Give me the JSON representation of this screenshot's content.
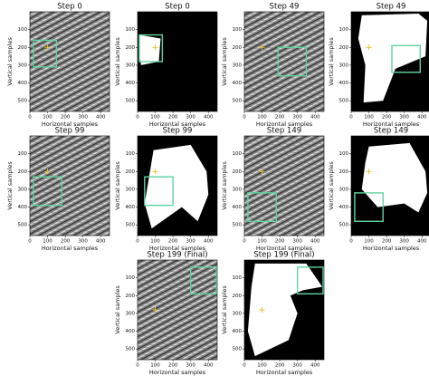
{
  "axes": {
    "xlabel": "Horizontal samples",
    "ylabel": "Vertical samples",
    "xticks": [
      "0",
      "100",
      "200",
      "300",
      "400"
    ],
    "yticks": [
      "100",
      "200",
      "300",
      "400",
      "500"
    ]
  },
  "panels": [
    {
      "title": "Step 0"
    },
    {
      "title": "Step 0"
    },
    {
      "title": "Step 49"
    },
    {
      "title": "Step 49"
    },
    {
      "title": "Step 99"
    },
    {
      "title": "Step 99"
    },
    {
      "title": "Step 149"
    },
    {
      "title": "Step 149"
    },
    {
      "title": "Step 199 (Final)"
    },
    {
      "title": "Step 199 (Final)"
    }
  ]
}
